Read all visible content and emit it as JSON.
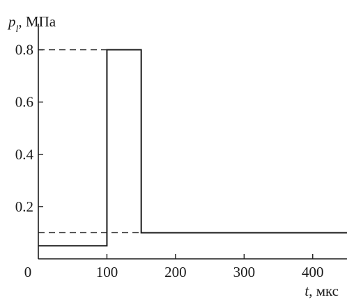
{
  "chart_data": {
    "type": "line",
    "title": "",
    "ylabel": {
      "symbol": "p",
      "subscript": "l",
      "unit": ", МПа"
    },
    "xlabel": {
      "symbol": "t",
      "unit": ", мкс"
    },
    "xlim": [
      0,
      450
    ],
    "ylim": [
      0,
      0.9
    ],
    "x_ticks": [
      0,
      100,
      200,
      300,
      400
    ],
    "x_tick_labels": [
      "0",
      "100",
      "200",
      "300",
      "400"
    ],
    "y_ticks": [
      0.2,
      0.4,
      0.6,
      0.8
    ],
    "y_tick_labels": [
      "0.2",
      "0.4",
      "0.6",
      "0.8"
    ],
    "grid": false,
    "series": [
      {
        "style": "solid",
        "color": "#1a1a1a",
        "x": [
          0,
          100,
          100,
          150,
          150,
          450
        ],
        "y": [
          0.05,
          0.05,
          0.8,
          0.8,
          0.1,
          0.1
        ]
      }
    ],
    "reference_lines": [
      {
        "style": "dashed",
        "x": [
          0,
          100
        ],
        "y": [
          0.8,
          0.8
        ]
      },
      {
        "style": "dashed",
        "x": [
          0,
          150
        ],
        "y": [
          0.1,
          0.1
        ]
      }
    ]
  }
}
